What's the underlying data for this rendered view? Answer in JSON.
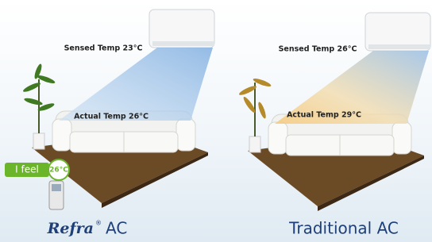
{
  "panels": [
    {
      "sensed": "Sensed Temp 23°C",
      "actual": "Actual Temp 26°C",
      "badge_label": "I feel",
      "badge_temp": "26°C",
      "brand": "Refra",
      "brand_mark": "®",
      "caption": "AC"
    },
    {
      "sensed": "Sensed Temp 26°C",
      "actual": "Actual Temp 29°C",
      "caption": "Traditional AC"
    }
  ]
}
